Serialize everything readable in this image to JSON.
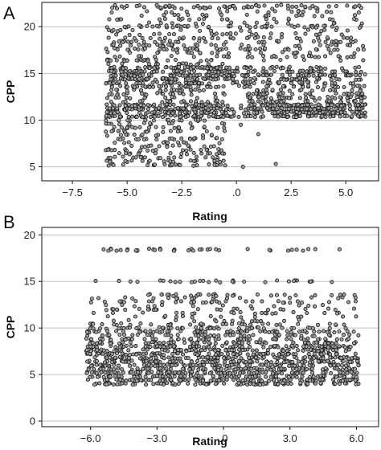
{
  "chart_data": [
    {
      "type": "scatter",
      "panel": "A",
      "title": "",
      "xlabel": "Rating",
      "ylabel": "CPP",
      "xlim": [
        -8.9,
        6.5
      ],
      "ylim": [
        3.5,
        22.6
      ],
      "xticks": [
        -7.5,
        -5.0,
        -2.5,
        0.0,
        2.5,
        5.0
      ],
      "xtick_labels": [
        "−7.5",
        "−5.0",
        "−2.5",
        ".0",
        "2.5",
        "5.0"
      ],
      "yticks": [
        5,
        10,
        15,
        20
      ],
      "ytick_labels": [
        "5",
        "10",
        "15",
        "20"
      ],
      "grid": "horizontal",
      "legend": "none",
      "marker_fill": "#a3a3a3",
      "marker_edge": "#222222",
      "clusters": [
        {
          "x": [
            -6.0,
            -0.5
          ],
          "y": [
            5.0,
            16.5
          ],
          "n": 520
        },
        {
          "x": [
            -6.0,
            5.9
          ],
          "y": [
            10.2,
            11.8
          ],
          "n": 320
        },
        {
          "x": [
            -6.0,
            5.9
          ],
          "y": [
            13.6,
            15.8
          ],
          "n": 380
        },
        {
          "x": [
            -6.0,
            5.9
          ],
          "y": [
            16.5,
            19.0
          ],
          "n": 220
        },
        {
          "x": [
            -6.0,
            5.9
          ],
          "y": [
            19.0,
            22.2
          ],
          "n": 150
        },
        {
          "x": [
            0.5,
            5.9
          ],
          "y": [
            10.5,
            13.5
          ],
          "n": 220
        }
      ],
      "point_rows": [
        {
          "y": 22.2,
          "x_range": [
            -6.0,
            5.8
          ],
          "n": 45
        },
        {
          "y": 20.0,
          "x_range": [
            -6.0,
            5.8
          ],
          "n": 40
        }
      ],
      "outliers": [
        {
          "x": 1.8,
          "y": 5.3
        },
        {
          "x": 0.3,
          "y": 5.0
        },
        {
          "x": -1.0,
          "y": 5.2
        },
        {
          "x": 0.2,
          "y": 9.5
        },
        {
          "x": 1.0,
          "y": 8.5
        }
      ]
    },
    {
      "type": "scatter",
      "panel": "B",
      "title": "",
      "xlabel": "Rating",
      "ylabel": "CPP",
      "xlim": [
        -8.2,
        7.0
      ],
      "ylim": [
        -0.6,
        20.8
      ],
      "xticks": [
        -6.0,
        -3.0,
        0.0,
        3.0,
        6.0
      ],
      "xtick_labels": [
        "−6.0",
        "−3.0",
        ".0",
        "3.0",
        "6.0"
      ],
      "yticks": [
        0,
        5,
        10,
        15,
        20
      ],
      "ytick_labels": [
        "0",
        "5",
        "10",
        "15",
        "20"
      ],
      "grid": "horizontal",
      "legend": "none",
      "marker_fill": "#a3a3a3",
      "marker_edge": "#222222",
      "clusters": [
        {
          "x": [
            -6.2,
            6.1
          ],
          "y": [
            3.8,
            8.5
          ],
          "n": 1100
        },
        {
          "x": [
            -6.2,
            6.1
          ],
          "y": [
            8.5,
            10.5
          ],
          "n": 260
        },
        {
          "x": [
            -6.0,
            6.0
          ],
          "y": [
            10.5,
            13.5
          ],
          "n": 150
        }
      ],
      "point_rows": [
        {
          "y": 18.4,
          "x_range": [
            -5.6,
            5.6
          ],
          "n": 38
        },
        {
          "y": 15.0,
          "x_range": [
            -5.8,
            5.6
          ],
          "n": 30
        },
        {
          "y": 13.5,
          "x_range": [
            -5.8,
            5.8
          ],
          "n": 24
        }
      ],
      "outliers": []
    }
  ]
}
